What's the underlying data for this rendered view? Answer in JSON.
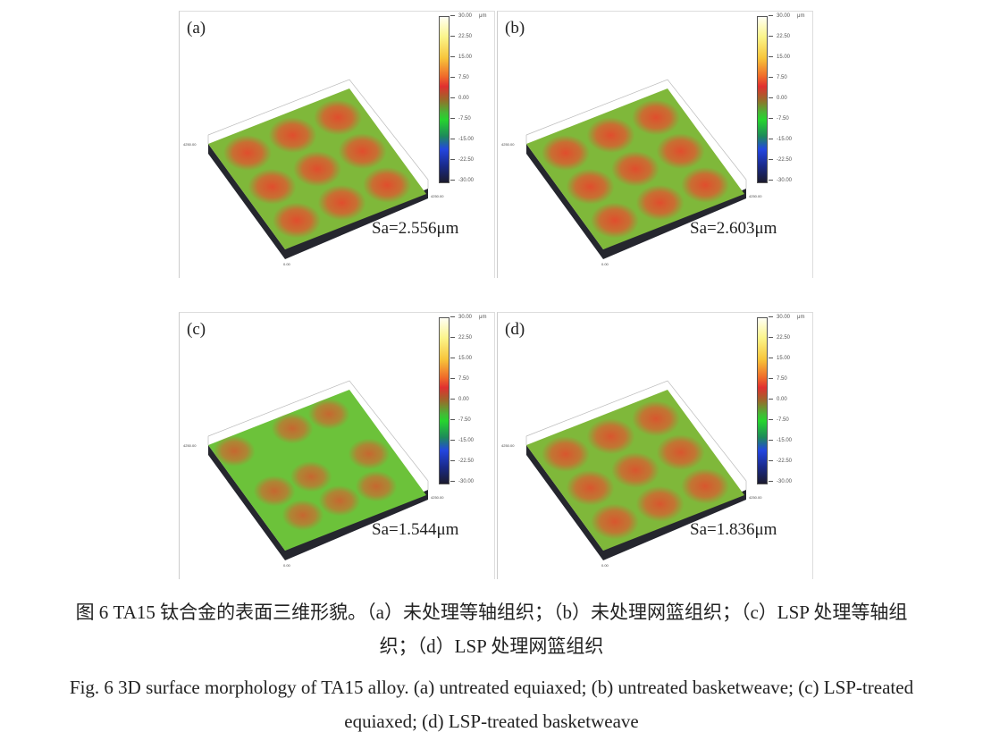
{
  "colorbar": {
    "unit": "μm",
    "ticks": [
      "30.00",
      "22.50",
      "15.00",
      "7.50",
      "0.00",
      "-7.50",
      "-15.00",
      "-22.50",
      "-30.00"
    ],
    "colors": [
      "#fffff4",
      "#fbf58a",
      "#f7c43a",
      "#e03030",
      "#9a6a2a",
      "#26d52e",
      "#2346e0",
      "#1a2a8a",
      "#1b1b2e"
    ]
  },
  "axis": {
    "max": "4250.00",
    "min": "0.00"
  },
  "panels": [
    {
      "label": "(a)",
      "sa": "Sa=2.556μm"
    },
    {
      "label": "(b)",
      "sa": "Sa=2.603μm"
    },
    {
      "label": "(c)",
      "sa": "Sa=1.544μm"
    },
    {
      "label": "(d)",
      "sa": "Sa=1.836μm"
    }
  ],
  "caption": {
    "cn_line1": "图 6 TA15 钛合金的表面三维形貌。（a）未处理等轴组织；（b）未处理网篮组织；（c）LSP 处理等轴组",
    "cn_line2": "织；（d）LSP 处理网篮组织",
    "en_line1": "Fig. 6 3D surface morphology of TA15 alloy. (a) untreated equiaxed; (b) untreated basketweave; (c) LSP-treated",
    "en_line2": "equiaxed; (d) LSP-treated basketweave"
  }
}
